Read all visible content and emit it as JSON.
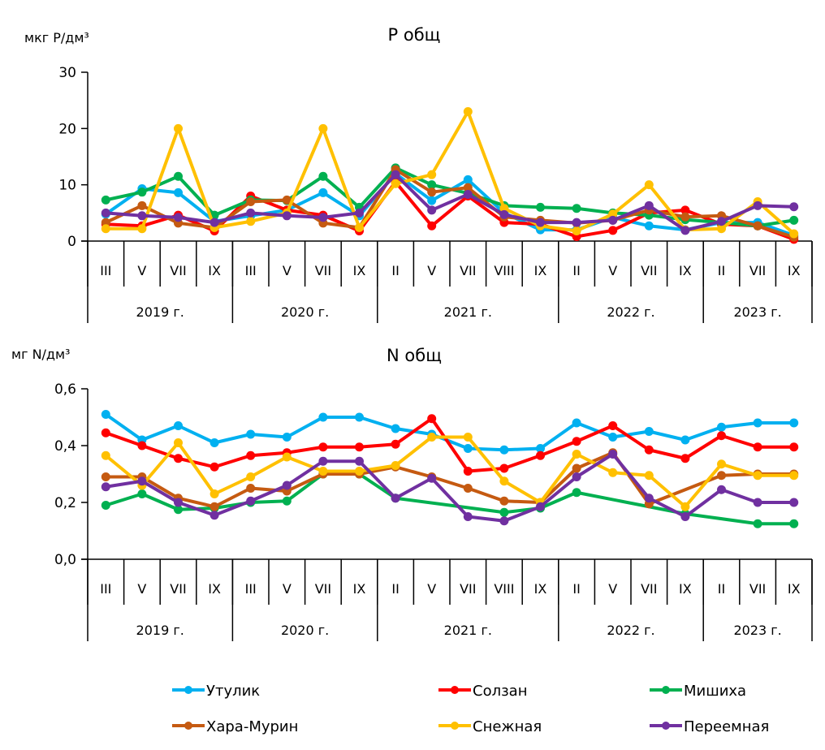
{
  "chart_data": [
    {
      "type": "line",
      "title": "P общ",
      "ylabel": "мкг P/дм³",
      "xlabel": "",
      "ylim": [
        0,
        30
      ],
      "yticks": [
        "0",
        "10",
        "20",
        "30"
      ],
      "ytick_values": [
        0,
        10,
        20,
        30
      ],
      "grid": false,
      "categories": [
        "III",
        "V",
        "VII",
        "IX",
        "III",
        "V",
        "VII",
        "IX",
        "II",
        "V",
        "VII",
        "VIII",
        "IX",
        "II",
        "V",
        "VII",
        "IX",
        "II",
        "VII",
        "IX"
      ],
      "year_groups": [
        {
          "label": "2019 г.",
          "count": 4
        },
        {
          "label": "2020 г.",
          "count": 4
        },
        {
          "label": "2021 г.",
          "count": 5
        },
        {
          "label": "2022 г.",
          "count": 4
        },
        {
          "label": "2023 г.",
          "count": 3
        }
      ],
      "series": [
        {
          "name": "Утулик",
          "color": "#00B0F0",
          "values": [
            4.8,
            9.3,
            8.6,
            3.5,
            4.5,
            5.5,
            8.6,
            4.5,
            12.0,
            7.2,
            10.9,
            5.0,
            2.0,
            2.0,
            4.2,
            2.7,
            2.0,
            3.3,
            3.3,
            1.0
          ]
        },
        {
          "name": "Солзан",
          "color": "#FF0000",
          "values": [
            3.0,
            2.7,
            4.6,
            1.8,
            8.0,
            5.5,
            4.6,
            1.8,
            10.5,
            2.7,
            8.0,
            3.3,
            3.0,
            0.8,
            1.9,
            5.0,
            5.5,
            3.0,
            2.7,
            0.3
          ]
        },
        {
          "name": "Мишиха",
          "color": "#00B050",
          "values": [
            7.3,
            8.7,
            11.5,
            4.6,
            7.3,
            7.2,
            11.5,
            6.0,
            13.0,
            10.0,
            8.5,
            6.3,
            6.0,
            5.8,
            5.0,
            4.6,
            3.8,
            3.3,
            2.7,
            3.7
          ]
        },
        {
          "name": "Хара-Мурин",
          "color": "#C55A11",
          "values": [
            3.3,
            6.3,
            3.2,
            2.4,
            7.0,
            7.3,
            3.2,
            2.4,
            12.7,
            8.7,
            9.5,
            4.3,
            3.7,
            3.2,
            3.7,
            5.5,
            4.3,
            4.5,
            2.7,
            0.7
          ]
        },
        {
          "name": "Снежная",
          "color": "#FFC000",
          "values": [
            2.2,
            2.2,
            20.0,
            2.4,
            3.5,
            5.0,
            20.0,
            2.4,
            10.2,
            11.8,
            23.0,
            5.8,
            2.7,
            1.8,
            4.8,
            10.0,
            2.0,
            2.2,
            7.0,
            1.3
          ]
        },
        {
          "name": "Переемная",
          "color": "#7030A0",
          "values": [
            5.0,
            4.5,
            4.2,
            3.3,
            5.0,
            4.5,
            4.2,
            5.0,
            11.8,
            5.5,
            8.3,
            4.7,
            3.3,
            3.3,
            3.7,
            6.3,
            1.9,
            3.5,
            6.3,
            6.1
          ]
        }
      ]
    },
    {
      "type": "line",
      "title": "N общ",
      "ylabel": "мг N/дм³",
      "xlabel": "",
      "ylim": [
        0,
        0.6
      ],
      "yticks": [
        "0,0",
        "0,2",
        "0,4",
        "0,6"
      ],
      "ytick_values": [
        0,
        0.2,
        0.4,
        0.6
      ],
      "grid": false,
      "categories": [
        "III",
        "V",
        "VII",
        "IX",
        "III",
        "V",
        "VII",
        "IX",
        "II",
        "V",
        "VII",
        "VIII",
        "IX",
        "II",
        "V",
        "VII",
        "IX",
        "II",
        "VII",
        "IX"
      ],
      "year_groups": [
        {
          "label": "2019 г.",
          "count": 4
        },
        {
          "label": "2020 г.",
          "count": 4
        },
        {
          "label": "2021 г.",
          "count": 5
        },
        {
          "label": "2022 г.",
          "count": 4
        },
        {
          "label": "2023 г.",
          "count": 3
        }
      ],
      "series": [
        {
          "name": "Утулик",
          "color": "#00B0F0",
          "values": [
            0.51,
            0.42,
            0.47,
            0.41,
            0.44,
            0.43,
            0.5,
            0.5,
            0.46,
            0.44,
            0.39,
            0.385,
            0.39,
            0.48,
            0.43,
            0.45,
            0.42,
            0.465,
            0.48,
            0.48
          ]
        },
        {
          "name": "Солзан",
          "color": "#FF0000",
          "values": [
            0.445,
            0.4,
            0.355,
            0.325,
            0.365,
            0.375,
            0.395,
            0.395,
            0.405,
            0.495,
            0.31,
            0.32,
            0.365,
            0.415,
            0.47,
            0.385,
            0.355,
            0.435,
            0.395,
            0.395
          ]
        },
        {
          "name": "Мишиха",
          "color": "#00B050",
          "values": [
            0.19,
            0.23,
            0.175,
            0.18,
            0.2,
            0.205,
            0.3,
            0.3,
            0.215,
            null,
            null,
            0.165,
            0.18,
            0.235,
            null,
            null,
            0.16,
            null,
            0.125,
            0.125
          ]
        },
        {
          "name": "Хара-Мурин",
          "color": "#C55A11",
          "values": [
            0.29,
            0.29,
            0.215,
            0.185,
            0.25,
            0.24,
            0.3,
            0.3,
            0.325,
            0.29,
            0.25,
            0.205,
            0.2,
            0.32,
            0.375,
            0.195,
            null,
            0.295,
            0.3,
            0.3
          ]
        },
        {
          "name": "Снежная",
          "color": "#FFC000",
          "values": [
            0.365,
            0.26,
            0.41,
            0.23,
            0.29,
            0.36,
            0.31,
            0.31,
            0.33,
            0.43,
            0.43,
            0.275,
            0.2,
            0.37,
            0.305,
            0.295,
            0.185,
            0.335,
            0.295,
            0.295
          ]
        },
        {
          "name": "Переемная",
          "color": "#7030A0",
          "values": [
            0.255,
            0.275,
            0.2,
            0.155,
            0.205,
            0.26,
            0.345,
            0.345,
            0.215,
            0.285,
            0.15,
            0.135,
            0.185,
            0.29,
            0.37,
            0.215,
            0.15,
            0.245,
            0.2,
            0.2
          ]
        }
      ]
    }
  ],
  "legend": {
    "placement": "bottom",
    "items": [
      {
        "name": "Утулик",
        "color": "#00B0F0"
      },
      {
        "name": "Солзан",
        "color": "#FF0000"
      },
      {
        "name": "Мишиха",
        "color": "#00B050"
      },
      {
        "name": "Хара-Мурин",
        "color": "#C55A11"
      },
      {
        "name": "Снежная",
        "color": "#FFC000"
      },
      {
        "name": "Переемная",
        "color": "#7030A0"
      }
    ]
  }
}
